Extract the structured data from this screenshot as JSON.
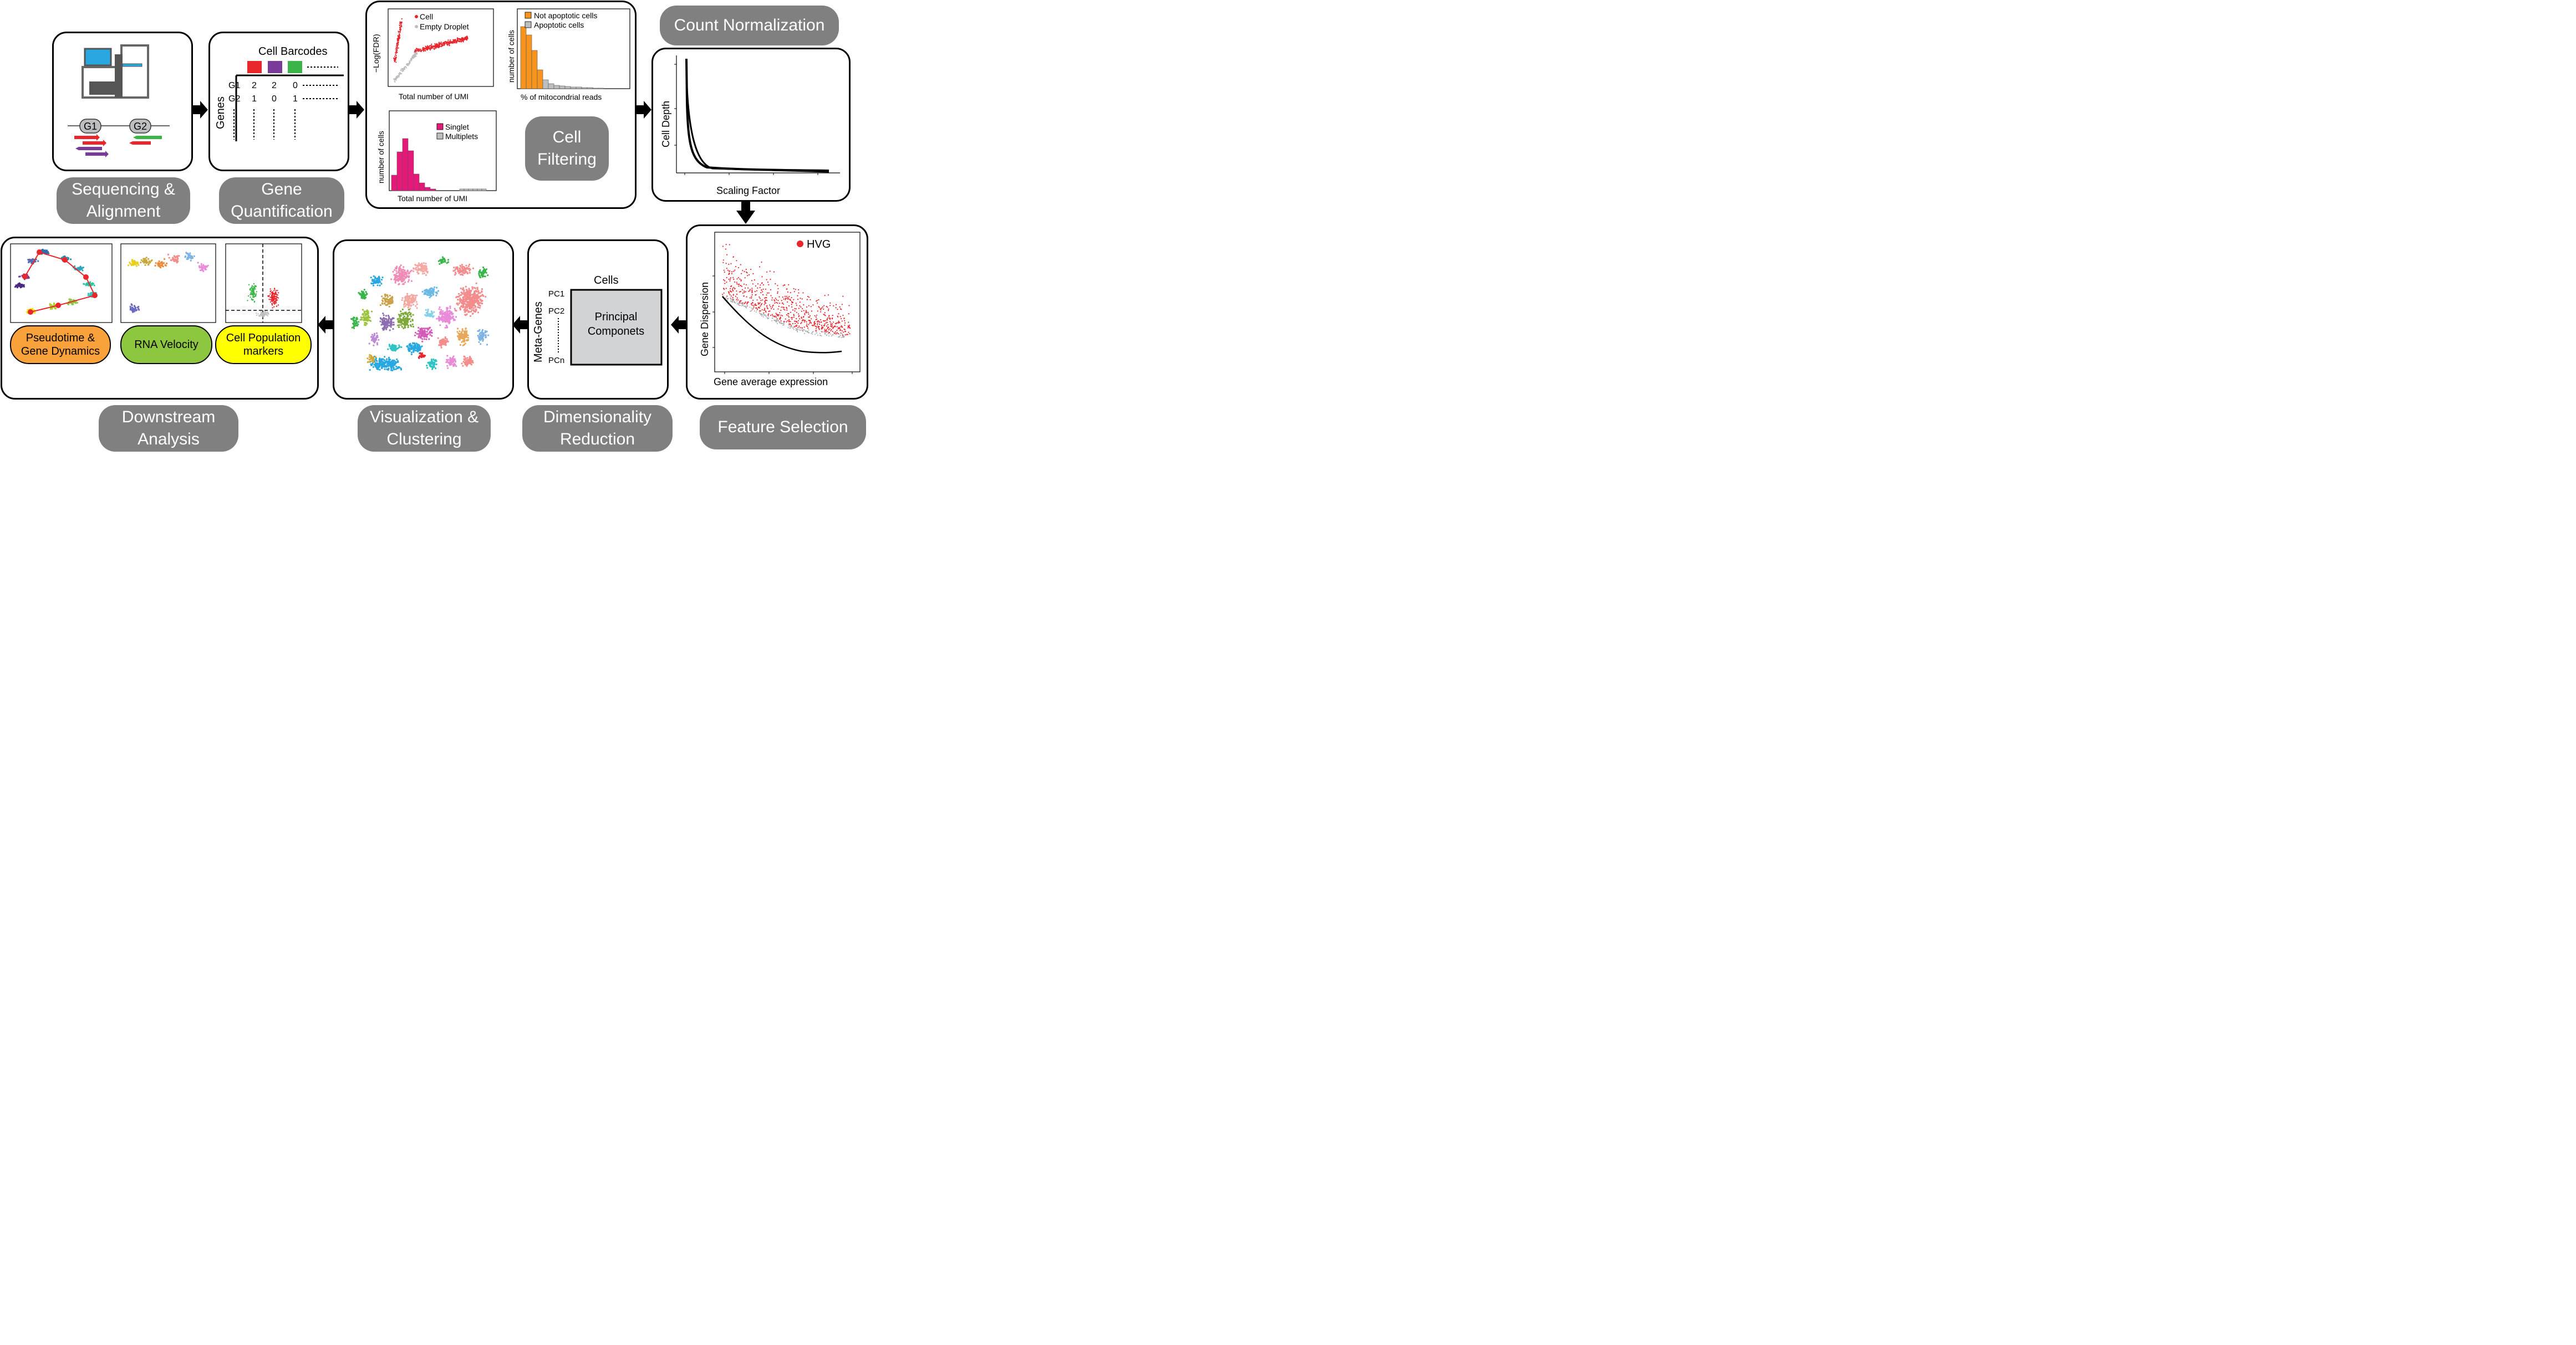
{
  "steps": {
    "sequencing": "Sequencing &\nAlignment",
    "quantification": "Gene\nQuantification",
    "filtering": "Cell\nFiltering",
    "normalization": "Count Normalization",
    "feature": "Feature Selection",
    "dimred": "Dimensionality\nReduction",
    "vis": "Visualization &\nClustering",
    "downstream": "Downstream\nAnalysis"
  },
  "sequencing": {
    "gene1": "G1",
    "gene2": "G2"
  },
  "quant": {
    "header": "Cell Barcodes",
    "axis": "Genes",
    "rows": [
      {
        "gene": "G1",
        "vals": [
          "2",
          "2",
          "0"
        ]
      },
      {
        "gene": "G2",
        "vals": [
          "1",
          "0",
          "1"
        ]
      }
    ]
  },
  "filter": {
    "scatter": {
      "ylabel": "−Log(FDR)",
      "xlabel": "Total number of UMI",
      "legend": [
        "Cell",
        "Empty Droplet"
      ]
    },
    "mito": {
      "ylabel": "number of cells",
      "xlabel": "% of mitocondrial reads",
      "legend": [
        "Not apoptotic cells",
        "Apoptotic cells"
      ]
    },
    "doublet": {
      "ylabel": "number of cells",
      "xlabel": "Total number of UMI",
      "legend": [
        "Singlet",
        "Multiplets"
      ]
    }
  },
  "norm": {
    "ylabel": "Cell Depth",
    "xlabel": "Scaling Factor"
  },
  "feature": {
    "ylabel": "Gene Dispersion",
    "xlabel": "Gene average expression",
    "legend": "HVG"
  },
  "dimred": {
    "cols": "Cells",
    "rows": "Meta-Genes",
    "pcs": [
      "PC1",
      "PC2",
      "PCn"
    ],
    "box": "Principal\nComponets"
  },
  "downstream": {
    "pseudotime": "Pseudotime &\nGene Dynamics",
    "velocity": "RNA Velocity",
    "markers": "Cell Population\nmarkers"
  },
  "colors": {
    "pill": "#808080",
    "red": "#e8262c",
    "purple": "#7a3a9a",
    "green": "#3bb54a",
    "blue": "#29a8e0",
    "orange": "#f7941d",
    "pink": "#e6197a",
    "grey": "#bcbec0",
    "yellow": "#ffff00",
    "lightgreen": "#8dc63f",
    "orangeoval": "#f9a13a"
  }
}
